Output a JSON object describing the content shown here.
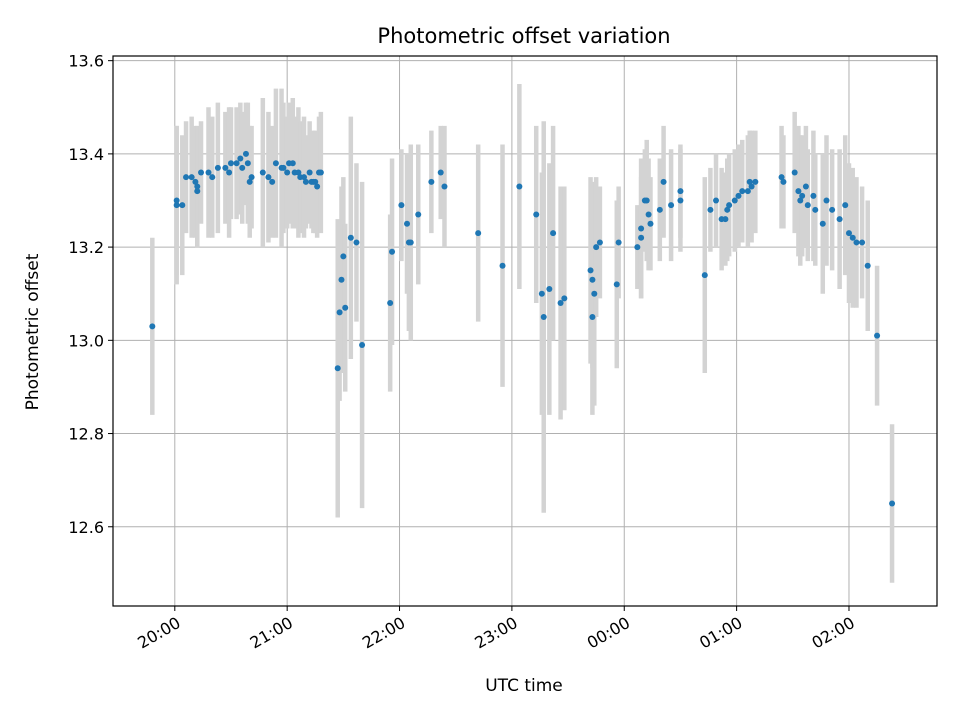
{
  "chart_data": {
    "type": "scatter",
    "title": "Photometric offset variation",
    "xlabel": "UTC time",
    "ylabel": "Photometric offset",
    "x_axis": "time",
    "x_ticks": [
      "20:00",
      "21:00",
      "22:00",
      "23:00",
      "00:00",
      "01:00",
      "02:00"
    ],
    "y_ticks": [
      "12.6",
      "12.8",
      "13.0",
      "13.2",
      "13.4",
      "13.6"
    ],
    "xlim": [
      "19:27",
      "02:47"
    ],
    "ylim": [
      12.43,
      13.61
    ],
    "grid": true,
    "colors": {
      "point": "#1f77b4",
      "errorbar": "#d3d3d3",
      "grid": "#b0b0b0"
    },
    "points": [
      [
        "19:48",
        13.03,
        0.19
      ],
      [
        "20:01",
        13.29,
        0.17
      ],
      [
        "20:01",
        13.3,
        0.16
      ],
      [
        "20:04",
        13.29,
        0.15
      ],
      [
        "20:06",
        13.35,
        0.12
      ],
      [
        "20:09",
        13.35,
        0.13
      ],
      [
        "20:11",
        13.34,
        0.12
      ],
      [
        "20:12",
        13.32,
        0.12
      ],
      [
        "20:12",
        13.33,
        0.13
      ],
      [
        "20:14",
        13.36,
        0.11
      ],
      [
        "20:18",
        13.36,
        0.14
      ],
      [
        "20:20",
        13.35,
        0.13
      ],
      [
        "20:23",
        13.37,
        0.14
      ],
      [
        "20:27",
        13.37,
        0.12
      ],
      [
        "20:29",
        13.36,
        0.14
      ],
      [
        "20:30",
        13.38,
        0.12
      ],
      [
        "20:33",
        13.38,
        0.12
      ],
      [
        "20:35",
        13.39,
        0.12
      ],
      [
        "20:36",
        13.37,
        0.12
      ],
      [
        "20:38",
        13.4,
        0.11
      ],
      [
        "20:39",
        13.38,
        0.13
      ],
      [
        "20:40",
        13.34,
        0.12
      ],
      [
        "20:41",
        13.35,
        0.11
      ],
      [
        "20:47",
        13.36,
        0.16
      ],
      [
        "20:50",
        13.35,
        0.14
      ],
      [
        "20:52",
        13.34,
        0.12
      ],
      [
        "20:54",
        13.38,
        0.16
      ],
      [
        "20:57",
        13.37,
        0.17
      ],
      [
        "20:58",
        13.37,
        0.14
      ],
      [
        "21:00",
        13.36,
        0.12
      ],
      [
        "21:01",
        13.38,
        0.13
      ],
      [
        "21:03",
        13.38,
        0.14
      ],
      [
        "21:04",
        13.36,
        0.12
      ],
      [
        "21:06",
        13.36,
        0.14
      ],
      [
        "21:07",
        13.35,
        0.12
      ],
      [
        "21:09",
        13.35,
        0.13
      ],
      [
        "21:10",
        13.34,
        0.1
      ],
      [
        "21:12",
        13.36,
        0.11
      ],
      [
        "21:13",
        13.34,
        0.1
      ],
      [
        "21:14",
        13.34,
        0.11
      ],
      [
        "21:15",
        13.34,
        0.11
      ],
      [
        "21:16",
        13.33,
        0.11
      ],
      [
        "21:17",
        13.36,
        0.12
      ],
      [
        "21:18",
        13.36,
        0.13
      ],
      [
        "21:27",
        12.94,
        0.32
      ],
      [
        "21:28",
        13.06,
        0.19
      ],
      [
        "21:29",
        13.13,
        0.2
      ],
      [
        "21:30",
        13.18,
        0.17
      ],
      [
        "21:31",
        13.07,
        0.18
      ],
      [
        "21:34",
        13.22,
        0.26
      ],
      [
        "21:37",
        13.21,
        0.17
      ],
      [
        "21:40",
        12.99,
        0.35
      ],
      [
        "21:55",
        13.08,
        0.19
      ],
      [
        "21:56",
        13.19,
        0.2
      ],
      [
        "22:01",
        13.29,
        0.12
      ],
      [
        "22:04",
        13.25,
        0.15
      ],
      [
        "22:05",
        13.21,
        0.19
      ],
      [
        "22:06",
        13.21,
        0.21
      ],
      [
        "22:10",
        13.27,
        0.15
      ],
      [
        "22:17",
        13.34,
        0.11
      ],
      [
        "22:22",
        13.36,
        0.1
      ],
      [
        "22:24",
        13.33,
        0.13
      ],
      [
        "22:42",
        13.23,
        0.19
      ],
      [
        "22:55",
        13.16,
        0.26
      ],
      [
        "23:04",
        13.33,
        0.22
      ],
      [
        "23:13",
        13.27,
        0.19
      ],
      [
        "23:16",
        13.1,
        0.26
      ],
      [
        "23:17",
        13.05,
        0.42
      ],
      [
        "23:20",
        13.11,
        0.27
      ],
      [
        "23:22",
        13.23,
        0.23
      ],
      [
        "23:26",
        13.08,
        0.25
      ],
      [
        "23:28",
        13.09,
        0.24
      ],
      [
        "23:42",
        13.15,
        0.2
      ],
      [
        "23:43",
        13.13,
        0.19
      ],
      [
        "23:43",
        13.05,
        0.21
      ],
      [
        "23:44",
        13.1,
        0.24
      ],
      [
        "23:45",
        13.2,
        0.15
      ],
      [
        "23:47",
        13.21,
        0.12
      ],
      [
        "23:56",
        13.12,
        0.18
      ],
      [
        "23:57",
        13.21,
        0.12
      ],
      [
        "00:07",
        13.2,
        0.09
      ],
      [
        "00:09",
        13.24,
        0.15
      ],
      [
        "00:09",
        13.22,
        0.13
      ],
      [
        "00:11",
        13.3,
        0.11
      ],
      [
        "00:12",
        13.3,
        0.13
      ],
      [
        "00:13",
        13.27,
        0.12
      ],
      [
        "00:14",
        13.25,
        0.1
      ],
      [
        "00:19",
        13.28,
        0.11
      ],
      [
        "00:21",
        13.34,
        0.12
      ],
      [
        "00:25",
        13.29,
        0.12
      ],
      [
        "00:30",
        13.32,
        0.1
      ],
      [
        "00:30",
        13.3,
        0.11
      ],
      [
        "00:43",
        13.14,
        0.21
      ],
      [
        "00:46",
        13.28,
        0.09
      ],
      [
        "00:49",
        13.3,
        0.1
      ],
      [
        "00:52",
        13.26,
        0.11
      ],
      [
        "00:54",
        13.26,
        0.1
      ],
      [
        "00:55",
        13.28,
        0.11
      ],
      [
        "00:56",
        13.29,
        0.11
      ],
      [
        "00:59",
        13.3,
        0.11
      ],
      [
        "01:01",
        13.31,
        0.11
      ],
      [
        "01:03",
        13.32,
        0.11
      ],
      [
        "01:06",
        13.32,
        0.12
      ],
      [
        "01:07",
        13.34,
        0.11
      ],
      [
        "01:08",
        13.33,
        0.12
      ],
      [
        "01:10",
        13.34,
        0.11
      ],
      [
        "01:24",
        13.35,
        0.11
      ],
      [
        "01:25",
        13.34,
        0.1
      ],
      [
        "01:31",
        13.36,
        0.13
      ],
      [
        "01:33",
        13.32,
        0.14
      ],
      [
        "01:34",
        13.3,
        0.14
      ],
      [
        "01:35",
        13.31,
        0.13
      ],
      [
        "01:37",
        13.33,
        0.13
      ],
      [
        "01:38",
        13.29,
        0.12
      ],
      [
        "01:41",
        13.31,
        0.14
      ],
      [
        "01:42",
        13.28,
        0.12
      ],
      [
        "01:46",
        13.25,
        0.15
      ],
      [
        "01:48",
        13.3,
        0.14
      ],
      [
        "01:51",
        13.28,
        0.13
      ],
      [
        "01:55",
        13.26,
        0.15
      ],
      [
        "01:58",
        13.29,
        0.15
      ],
      [
        "02:00",
        13.23,
        0.15
      ],
      [
        "02:02",
        13.22,
        0.15
      ],
      [
        "02:04",
        13.21,
        0.14
      ],
      [
        "02:07",
        13.21,
        0.12
      ],
      [
        "02:10",
        13.16,
        0.14
      ],
      [
        "02:15",
        13.01,
        0.15
      ],
      [
        "02:23",
        12.65,
        0.17
      ]
    ]
  }
}
